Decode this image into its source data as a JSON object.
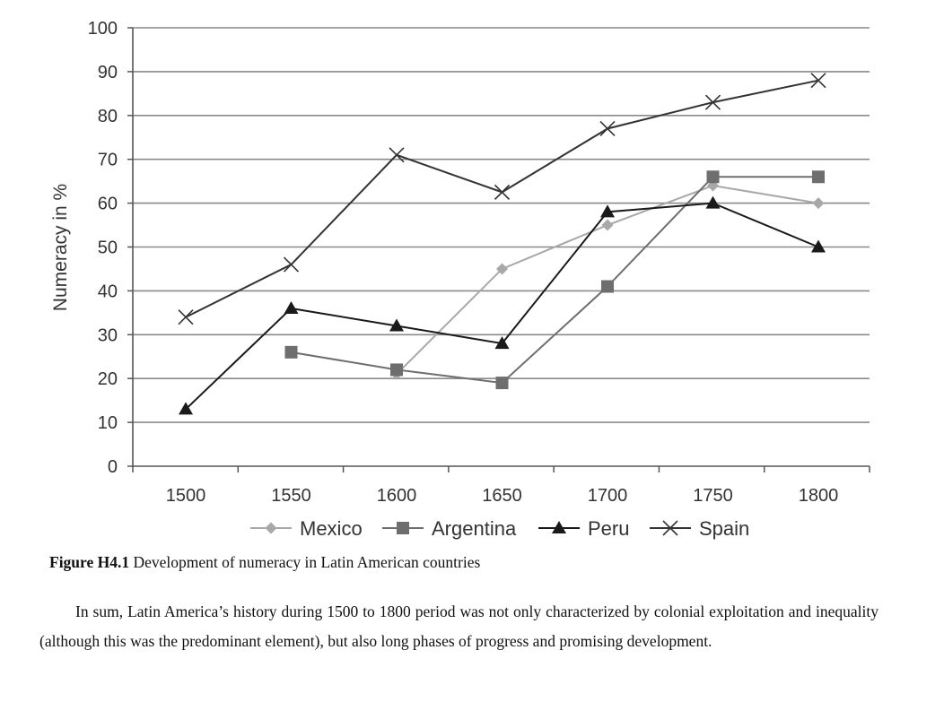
{
  "chart_data": {
    "type": "line",
    "ylabel": "Numeracy in %",
    "xlabel": "",
    "x": [
      1500,
      1550,
      1600,
      1650,
      1700,
      1750,
      1800
    ],
    "ylim": [
      0,
      100
    ],
    "yticks": [
      0,
      10,
      20,
      30,
      40,
      50,
      60,
      70,
      80,
      90,
      100
    ],
    "grid": "horizontal",
    "legend_position": "bottom",
    "series": [
      {
        "name": "Mexico",
        "marker": "diamond",
        "color": "#a8a8a8",
        "values": [
          null,
          null,
          21,
          45,
          55,
          64,
          60
        ]
      },
      {
        "name": "Argentina",
        "marker": "square",
        "color": "#6e6e6e",
        "values": [
          null,
          26,
          22,
          19,
          41,
          66,
          66
        ]
      },
      {
        "name": "Peru",
        "marker": "triangle",
        "color": "#1a1a1a",
        "values": [
          13,
          36,
          32,
          28,
          58,
          60,
          50
        ]
      },
      {
        "name": "Spain",
        "marker": "x",
        "color": "#333333",
        "values": [
          34,
          46,
          71,
          62.5,
          77,
          83,
          88
        ]
      }
    ]
  },
  "caption": {
    "label": "Figure H4.1",
    "text": " Development of numeracy in Latin American countries"
  },
  "paragraph": "In sum, Latin America’s history during 1500 to 1800 period was not only characterized by colonial exploitation and inequality (although this was the predominant element), but also long phases of progress and promising development."
}
